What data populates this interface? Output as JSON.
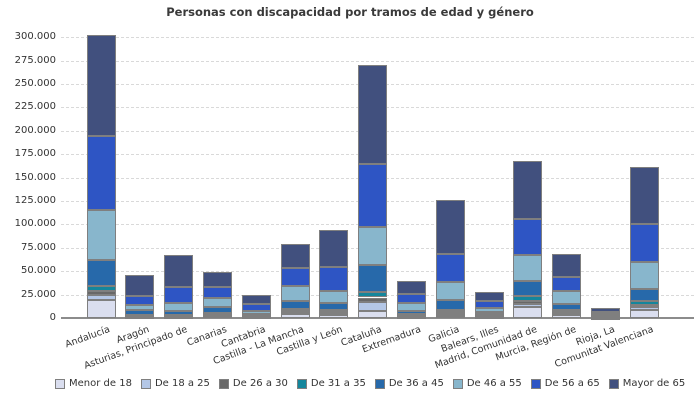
{
  "title": "Personas con discapacidad por tramos de edad y género",
  "chart_data": {
    "type": "bar",
    "stacked": true,
    "title": "Personas con discapacidad por tramos de edad y género",
    "xlabel": "",
    "ylabel": "",
    "ylim": [
      0,
      300000
    ],
    "ytick_step": 25000,
    "grid": "horizontal-dashed",
    "legend_position": "bottom",
    "y_tick_labels": [
      "0",
      "25.000",
      "50.000",
      "75.000",
      "100.000",
      "125.000",
      "150.000",
      "175.000",
      "200.000",
      "225.000",
      "250.000",
      "275.000",
      "300.000"
    ],
    "categories": [
      "Andalucía",
      "Aragón",
      "Asturias, Principado de",
      "Canarias",
      "Cantabria",
      "Castilla - La Mancha",
      "Castilla y León",
      "Cataluña",
      "Extremadura",
      "Galicia",
      "Balears, Illes",
      "Madrid, Comunidad de",
      "Murcia, Región de",
      "Rioja, La",
      "Comunitat Valenciana"
    ],
    "series": [
      {
        "name": "Menor de 18",
        "color": "#dadeef",
        "values": [
          19000,
          900,
          800,
          1800,
          900,
          4000,
          3200,
          7000,
          1100,
          2500,
          1500,
          11300,
          2800,
          500,
          8900
        ]
      },
      {
        "name": "De 18 a 25",
        "color": "#b4c7e6",
        "values": [
          5500,
          700,
          700,
          1000,
          500,
          2100,
          2100,
          10000,
          1000,
          1500,
          1200,
          3600,
          1800,
          300,
          2900
        ]
      },
      {
        "name": "De 26 a 30",
        "color": "#686868",
        "values": [
          4500,
          700,
          700,
          1500,
          400,
          1400,
          1100,
          4900,
          800,
          2100,
          500,
          3600,
          1800,
          300,
          2500
        ]
      },
      {
        "name": "De 31 a 35",
        "color": "#14869c",
        "values": [
          5500,
          800,
          800,
          1000,
          500,
          2100,
          1800,
          6400,
          1000,
          2900,
          700,
          4500,
          2500,
          400,
          3500
        ]
      },
      {
        "name": "De 36 a 45",
        "color": "#2769aa",
        "values": [
          27500,
          5700,
          4900,
          6400,
          1600,
          8500,
          7500,
          28400,
          3900,
          10700,
          2800,
          16100,
          6100,
          900,
          13200
        ]
      },
      {
        "name": "De 46 a 55",
        "color": "#88b6cc",
        "values": [
          53000,
          5000,
          8500,
          9700,
          3500,
          16300,
          13100,
          40700,
          7800,
          18400,
          4300,
          28500,
          14200,
          1400,
          28900
        ]
      },
      {
        "name": "De 56 a 65",
        "color": "#2e55c4",
        "values": [
          79000,
          10000,
          16300,
          12000,
          7500,
          19100,
          25500,
          67500,
          9900,
          30500,
          6800,
          38400,
          14200,
          2700,
          40900
        ]
      },
      {
        "name": "Mayor de 65",
        "color": "#41507e",
        "values": [
          108000,
          22200,
          34300,
          16000,
          9600,
          26000,
          40100,
          105700,
          13900,
          57400,
          9500,
          62000,
          25000,
          4300,
          60100
        ]
      }
    ],
    "totals": [
      302000,
      46000,
      67000,
      49400,
      24500,
      79500,
      94400,
      270600,
      39400,
      126000,
      27300,
      168000,
      68400,
      10800,
      160900
    ]
  }
}
